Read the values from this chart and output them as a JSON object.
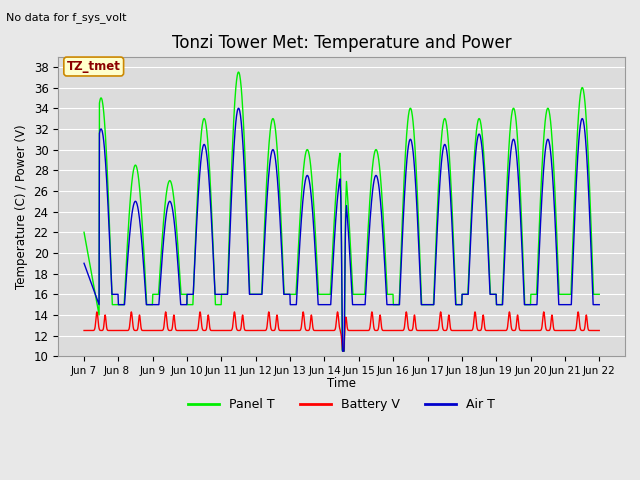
{
  "title": "Tonzi Tower Met: Temperature and Power",
  "ylabel": "Temperature (C) / Power (V)",
  "xlabel": "Time",
  "top_left_text": "No data for f_sys_volt",
  "annotation_box": "TZ_tmet",
  "ylim": [
    10,
    39
  ],
  "yticks": [
    10,
    12,
    14,
    16,
    18,
    20,
    22,
    24,
    26,
    28,
    30,
    32,
    34,
    36,
    38
  ],
  "xtick_labels": [
    "Jun 7",
    "Jun 8 ",
    "Jun 9",
    "Jun 10",
    "Jun 11",
    "Jun 12",
    "Jun 13",
    "Jun 14",
    "Jun 15",
    "Jun 16",
    "Jun 17",
    "Jun 18",
    "Jun 19",
    "Jun 20",
    "Jun 21",
    "Jun 22"
  ],
  "bg_color": "#dcdcdc",
  "grid_color": "#ffffff",
  "panel_t_color": "#00ee00",
  "battery_v_color": "#ff0000",
  "air_t_color": "#0000cc",
  "legend_labels": [
    "Panel T",
    "Battery V",
    "Air T"
  ],
  "title_fontsize": 12,
  "axis_fontsize": 9,
  "panel_peaks": [
    35,
    28.5,
    27,
    33,
    37.5,
    33,
    30,
    30,
    30,
    34,
    33,
    33,
    34,
    34,
    36
  ],
  "panel_night": [
    15,
    15,
    16,
    15,
    16,
    16,
    16,
    16,
    16,
    15,
    15,
    16,
    15,
    16,
    16
  ],
  "air_peaks": [
    32,
    25,
    25,
    30.5,
    34,
    30,
    27.5,
    27.5,
    27.5,
    31,
    30.5,
    31.5,
    31,
    31,
    33
  ],
  "air_night": [
    16,
    15,
    15,
    16,
    16,
    16,
    15,
    15,
    15,
    15,
    15,
    16,
    15,
    15,
    15
  ],
  "battery_base": 12.5,
  "battery_spike_max": 14.5
}
